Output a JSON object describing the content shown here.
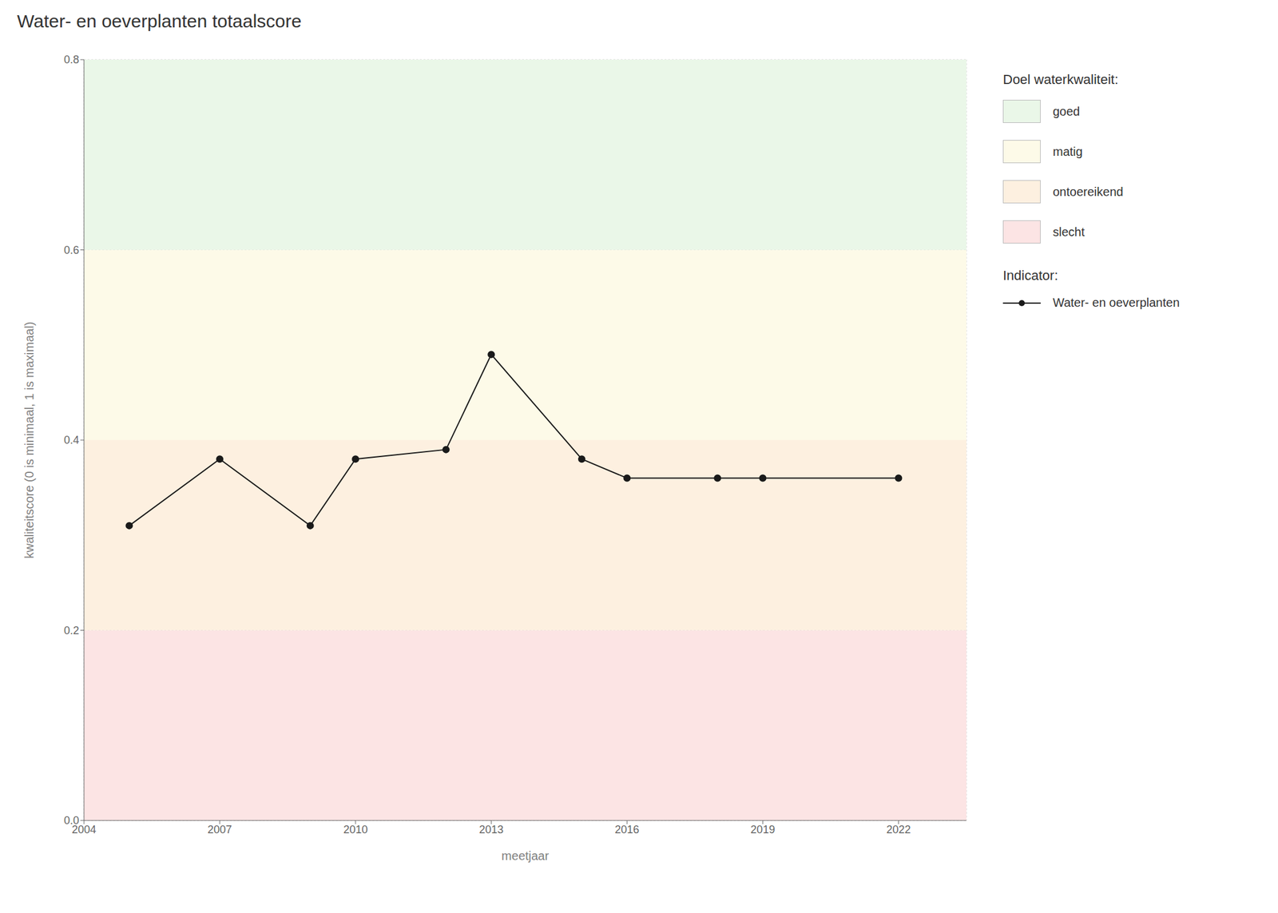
{
  "chart_data": {
    "type": "line",
    "title": "Water- en oeverplanten totaalscore",
    "xlabel": "meetjaar",
    "ylabel": "kwaliteitscore (0 is minimaal, 1 is maximaal)",
    "x": [
      2005,
      2007,
      2009,
      2010,
      2012,
      2013,
      2015,
      2016,
      2018,
      2019,
      2022
    ],
    "series": [
      {
        "name": "Water- en oeverplanten",
        "color": "#1a1a1a",
        "marker": "o",
        "values": [
          0.31,
          0.38,
          0.31,
          0.38,
          0.39,
          0.49,
          0.38,
          0.36,
          0.36,
          0.36,
          0.36
        ]
      }
    ],
    "xlim": [
      2004,
      2023.5
    ],
    "ylim": [
      0.0,
      0.8
    ],
    "xticks": [
      2004,
      2007,
      2010,
      2013,
      2016,
      2019,
      2022
    ],
    "yticks": [
      {
        "value": 0.0,
        "label": "0.0"
      },
      0.2,
      0.4,
      0.6,
      0.8
    ],
    "grid": true,
    "zones": [
      {
        "ymin": 0.0,
        "ymax": 0.2,
        "color": "#fce4e4",
        "label": "slecht"
      },
      {
        "ymin": 0.2,
        "ymax": 0.4,
        "color": "#fdf0e0",
        "label": "ontoereikend"
      },
      {
        "ymin": 0.4,
        "ymax": 0.6,
        "color": "#fdfae8",
        "label": "matig"
      },
      {
        "ymin": 0.6,
        "ymax": 0.8,
        "color": "#eaf7e8",
        "label": "goed"
      }
    ],
    "legend_titles": [
      "Doel waterkwaliteit:",
      "Indicator:"
    ]
  }
}
